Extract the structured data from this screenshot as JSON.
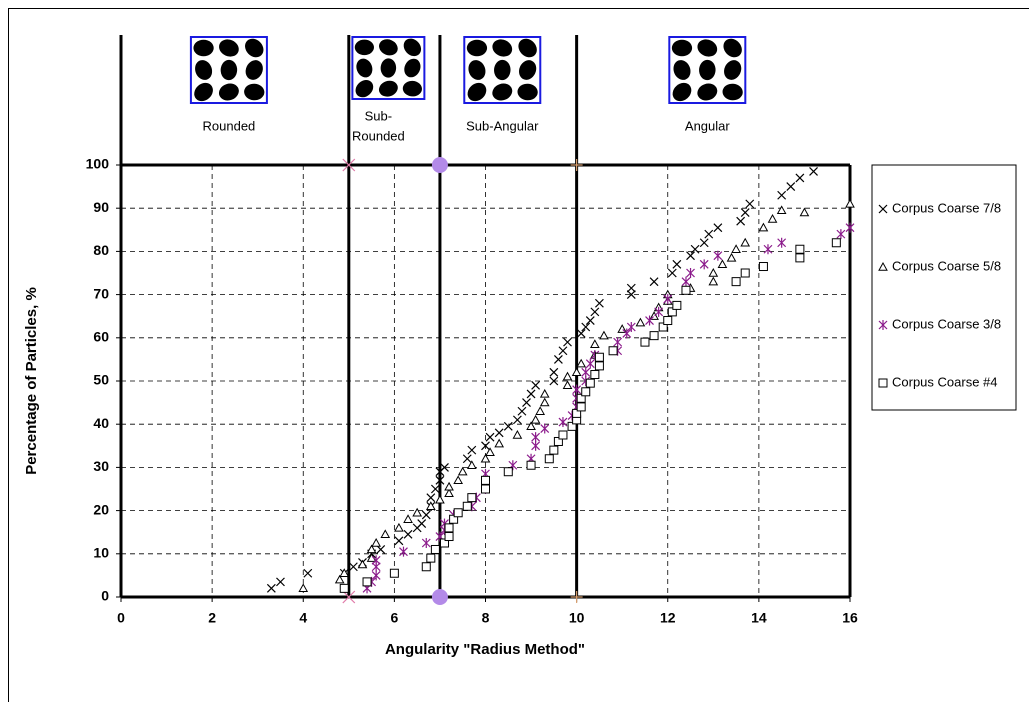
{
  "chart_data": {
    "type": "scatter",
    "xlabel": "Angularity \"Radius Method\"",
    "ylabel": "Percentage of Particles, %",
    "xlim": [
      0,
      16
    ],
    "xticks": [
      0,
      2,
      4,
      6,
      8,
      10,
      12,
      14,
      16
    ],
    "ylim": [
      0,
      100
    ],
    "yticks": [
      0,
      10,
      20,
      30,
      40,
      50,
      60,
      70,
      80,
      90,
      100
    ],
    "grid": true,
    "legend": "right",
    "regions": [
      "Rounded",
      [
        "Sub-",
        "Rounded"
      ],
      "Sub-Angular",
      "Angular"
    ],
    "boundaries": {
      "x": [
        5,
        7,
        10
      ],
      "colors": [
        "#e07aa8",
        "#b38ae8",
        "#d9a070"
      ],
      "markers": [
        "x",
        "circle",
        "plus"
      ]
    },
    "series": [
      {
        "name": "Corpus Coarse 7/8",
        "color": "#000000",
        "marker": "x",
        "x": [
          3.3,
          3.5,
          4.1,
          4.9,
          5.1,
          5.3,
          5.5,
          5.7,
          6.1,
          6.3,
          6.5,
          6.6,
          6.7,
          6.8,
          6.8,
          6.9,
          7,
          7,
          7.1,
          7.6,
          7.7,
          8,
          8.1,
          8.3,
          8.5,
          8.7,
          8.8,
          8.9,
          9,
          9.1,
          9.5,
          9.5,
          9.6,
          9.7,
          9.8,
          10.1,
          10.2,
          10.3,
          10.4,
          10.5,
          11.2,
          11.2,
          11.7,
          12.1,
          12.2,
          12.5,
          12.6,
          12.8,
          12.9,
          13.1,
          13.6,
          13.7,
          13.8,
          14.5,
          14.7,
          14.9,
          15.2
        ],
        "values": [
          2,
          3.5,
          5.5,
          5.5,
          7,
          8,
          10,
          11,
          13,
          14.5,
          16,
          17,
          19,
          21,
          23,
          25,
          27,
          29,
          30,
          32,
          34,
          35,
          37,
          38,
          39.5,
          41,
          43,
          45,
          47,
          49,
          50,
          52,
          55,
          57,
          59,
          61,
          62.5,
          64,
          66,
          68,
          70,
          71.5,
          73,
          75,
          77,
          79,
          80.5,
          82,
          84,
          85.5,
          87,
          89,
          91,
          93,
          95,
          97,
          98.5
        ]
      },
      {
        "name": "Corpus Coarse 5/8",
        "color": "#000000",
        "marker": "triangle",
        "x": [
          4,
          4.8,
          4.9,
          5.3,
          5.5,
          5.5,
          5.6,
          5.8,
          6.1,
          6.3,
          6.5,
          6.8,
          7,
          7.2,
          7.2,
          7.4,
          7.5,
          7.7,
          8,
          8.1,
          8.3,
          8.7,
          9,
          9.1,
          9.2,
          9.3,
          9.3,
          9.8,
          9.8,
          10,
          10.1,
          10.4,
          10.4,
          10.6,
          11,
          11.4,
          11.7,
          11.8,
          12,
          12,
          12.5,
          13,
          13,
          13.2,
          13.4,
          13.5,
          13.7,
          14.1,
          14.3,
          14.5,
          15,
          16
        ],
        "values": [
          2,
          4,
          5.5,
          7.5,
          9,
          11,
          12.5,
          14.5,
          16,
          18,
          19.5,
          21,
          22.5,
          24,
          25.5,
          27,
          29,
          30.5,
          32,
          33.5,
          35.5,
          37.5,
          39.5,
          41,
          43,
          45,
          47,
          49,
          51,
          52,
          54,
          56,
          58.5,
          60.5,
          62,
          63.5,
          65,
          67,
          68.5,
          70,
          71.5,
          73,
          75,
          77,
          78.5,
          80.5,
          82,
          85.5,
          87.5,
          89.5,
          89,
          91
        ]
      },
      {
        "name": "Corpus Coarse 3/8",
        "color": "#8b1a8b",
        "marker": "star",
        "x": [
          5.4,
          5.5,
          5.6,
          5.6,
          5.6,
          6.2,
          6.7,
          7,
          7.1,
          7.1,
          7.3,
          7.7,
          7.8,
          8,
          8,
          8.6,
          9,
          9.1,
          9.1,
          9.3,
          9.7,
          9.9,
          10,
          10,
          10,
          10.2,
          10.2,
          10.3,
          10.4,
          10.9,
          10.9,
          11.1,
          11.2,
          11.6,
          11.8,
          12,
          12.4,
          12.5,
          12.8,
          13.1,
          14.2,
          14.5,
          15.8,
          16
        ],
        "values": [
          2,
          3.5,
          5,
          7,
          8.5,
          10.5,
          12.5,
          14,
          15.5,
          17,
          19,
          21,
          23,
          25,
          28.5,
          30.5,
          32,
          35,
          37,
          39,
          40.5,
          42,
          44,
          46,
          48,
          50,
          52,
          54,
          56,
          57,
          59,
          61,
          62.5,
          64,
          66,
          69,
          73,
          75,
          77,
          79,
          80.5,
          82,
          84,
          85.5
        ]
      },
      {
        "name": "Corpus Coarse #4",
        "color": "#000000",
        "marker": "square",
        "x": [
          4.9,
          5.4,
          6,
          6.7,
          6.8,
          6.9,
          7.1,
          7.2,
          7.2,
          7.3,
          7.4,
          7.6,
          7.7,
          8,
          8,
          8.5,
          9,
          9.4,
          9.5,
          9.6,
          9.7,
          9.9,
          10,
          10,
          10.1,
          10.1,
          10.2,
          10.3,
          10.4,
          10.5,
          10.5,
          10.8,
          11.5,
          11.7,
          11.9,
          12,
          12.1,
          12.2,
          12.4,
          13.5,
          13.7,
          14.1,
          14.9,
          14.9,
          15.7
        ],
        "values": [
          2,
          3.5,
          5.5,
          7,
          9,
          11,
          12.5,
          14,
          16,
          18,
          19.5,
          21,
          23,
          25,
          27,
          29,
          30.5,
          32,
          34,
          36,
          37.5,
          39.5,
          41,
          42.5,
          44,
          46,
          47.5,
          49.5,
          51.5,
          53.5,
          55.5,
          57,
          59,
          60.5,
          62.5,
          64,
          66,
          67.5,
          71,
          73,
          75,
          76.5,
          78.5,
          80.5,
          82
        ]
      }
    ]
  }
}
